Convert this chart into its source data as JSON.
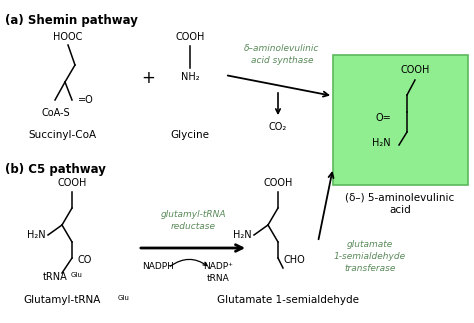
{
  "bg_color": "#ffffff",
  "green_box_color": "#90EE90",
  "green_box_edge": "#5cb85c",
  "text_color": "#000000",
  "enzyme_color": "#5a8a5a",
  "fig_width": 4.74,
  "fig_height": 3.23,
  "dpi": 100,
  "section_a_label": "(a) Shemin pathway",
  "section_b_label": "(b) C5 pathway",
  "succinyl_coa_label": "Succinyl-CoA",
  "glycine_label": "Glycine",
  "product_label_1": "(δ–) 5-aminolevulinic",
  "product_label_2": "acid",
  "co2_label": "CO₂",
  "enzyme1_line1": "δ–aminolevulinic",
  "enzyme1_line2": "acid synthase",
  "glut_semialdehyde_label": "Glutamate 1-semialdehyde",
  "enzyme2_line1": "glutamyl-tRNA",
  "enzyme2_line2": "reductase",
  "enzyme3_line1": "glutamate",
  "enzyme3_line2": "1-semialdehyde",
  "enzyme3_line3": "transferase",
  "nadph_label": "NADPH",
  "nadp_label": "NADP⁺",
  "trna_label": "tRNA"
}
